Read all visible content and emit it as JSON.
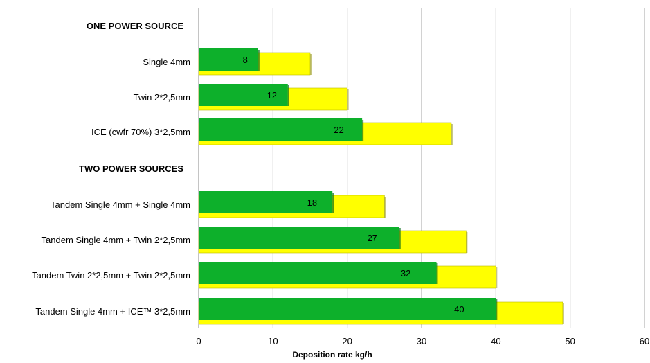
{
  "chart_data": {
    "type": "bar",
    "orientation": "horizontal",
    "categories": [
      "ONE POWER SOURCE",
      "Single 4mm",
      "Twin 2*2,5mm",
      "ICE (cwfr 70%) 3*2,5mm",
      "TWO POWER SOURCES",
      "Tandem Single 4mm + Single 4mm",
      "Tandem Single 4mm + Twin 2*2,5mm",
      "Tandem Twin 2*2,5mm + Twin 2*2,5mm",
      "Tandem Single 4mm + ICE™ 3*2,5mm"
    ],
    "group_headers": [
      "ONE POWER SOURCE",
      "TWO POWER SOURCES"
    ],
    "series": [
      {
        "values": [
          null,
          15,
          20,
          34,
          null,
          25,
          36,
          40,
          49
        ],
        "color": "#FFFF00"
      },
      {
        "values": [
          null,
          8,
          12,
          22,
          null,
          18,
          27,
          32,
          40
        ],
        "color": "#0DB02B",
        "data_labels": [
          "",
          "8",
          "12",
          "22",
          "",
          "18",
          "27",
          "32",
          "40"
        ]
      }
    ],
    "xlabel": "Deposition rate kg/h",
    "xlim": [
      0,
      60
    ],
    "x_ticks": [
      0,
      10,
      20,
      30,
      40,
      50,
      60
    ],
    "x_tick_labels": [
      "0",
      "10",
      "20",
      "30",
      "40",
      "50",
      "60"
    ],
    "grid": true,
    "legend": "none"
  }
}
